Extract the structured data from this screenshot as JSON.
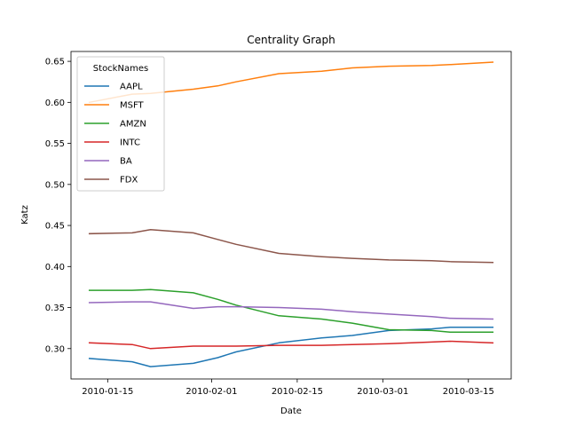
{
  "chart_data": {
    "type": "line",
    "title": "Centrality Graph",
    "xlabel": "Date",
    "ylabel": "Katz",
    "legend_title": "StockNames",
    "legend_position": "top-left",
    "grid": false,
    "x": [
      "2010-01-12",
      "2010-01-19",
      "2010-01-22",
      "2010-01-29",
      "2010-02-02",
      "2010-02-05",
      "2010-02-12",
      "2010-02-19",
      "2010-02-24",
      "2010-03-02",
      "2010-03-09",
      "2010-03-12",
      "2010-03-19"
    ],
    "xticks": [
      "2010-01-15",
      "2010-02-01",
      "2010-02-15",
      "2010-03-01",
      "2010-03-15"
    ],
    "xlim": [
      "2010-01-09",
      "2010-03-22"
    ],
    "yticks": [
      0.3,
      0.35,
      0.4,
      0.45,
      0.5,
      0.55,
      0.6,
      0.65
    ],
    "ytick_labels": [
      "0.30",
      "0.35",
      "0.40",
      "0.45",
      "0.50",
      "0.55",
      "0.60",
      "0.65"
    ],
    "ylim": [
      0.263,
      0.662
    ],
    "series": [
      {
        "name": "AAPL",
        "color": "#1f77b4",
        "values": [
          0.288,
          0.284,
          0.278,
          0.282,
          0.289,
          0.296,
          0.307,
          0.313,
          0.316,
          0.322,
          0.324,
          0.326,
          0.326
        ]
      },
      {
        "name": "MSFT",
        "color": "#ff7f0e",
        "values": [
          0.6,
          0.61,
          0.611,
          0.616,
          0.62,
          0.625,
          0.635,
          0.638,
          0.642,
          0.644,
          0.645,
          0.646,
          0.649
        ]
      },
      {
        "name": "AMZN",
        "color": "#2ca02c",
        "values": [
          0.371,
          0.371,
          0.372,
          0.368,
          0.36,
          0.353,
          0.34,
          0.336,
          0.331,
          0.323,
          0.322,
          0.32,
          0.32
        ]
      },
      {
        "name": "INTC",
        "color": "#d62728",
        "values": [
          0.307,
          0.305,
          0.3,
          0.303,
          0.303,
          0.303,
          0.304,
          0.304,
          0.305,
          0.306,
          0.308,
          0.309,
          0.307
        ]
      },
      {
        "name": "BA",
        "color": "#9467bd",
        "values": [
          0.356,
          0.357,
          0.357,
          0.349,
          0.351,
          0.351,
          0.35,
          0.348,
          0.345,
          0.342,
          0.339,
          0.337,
          0.336
        ]
      },
      {
        "name": "FDX",
        "color": "#8c564b",
        "values": [
          0.44,
          0.441,
          0.445,
          0.441,
          0.433,
          0.427,
          0.416,
          0.412,
          0.41,
          0.408,
          0.407,
          0.406,
          0.405
        ]
      }
    ]
  }
}
